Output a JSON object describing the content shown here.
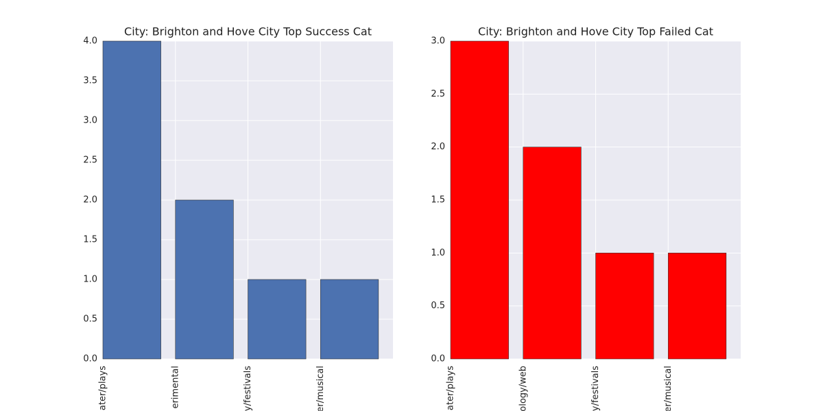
{
  "chart_data": [
    {
      "type": "bar",
      "title": "City: Brighton and Hove City Top Success Cat",
      "categories": [
        "ater/plays",
        "erimental",
        "y/festivals",
        "er/musical"
      ],
      "values": [
        4,
        2,
        1,
        1
      ],
      "color": "#4c72b0",
      "ylim": [
        0,
        4
      ],
      "yticks": [
        {
          "value": 0,
          "label": "0.0"
        },
        {
          "value": 0.5,
          "label": "0.5"
        },
        {
          "value": 1,
          "label": "1.0"
        },
        {
          "value": 1.5,
          "label": "1.5"
        },
        {
          "value": 2,
          "label": "2.0"
        },
        {
          "value": 2.5,
          "label": "2.5"
        },
        {
          "value": 3,
          "label": "3.0"
        },
        {
          "value": 3.5,
          "label": "3.5"
        },
        {
          "value": 4,
          "label": "4.0"
        }
      ],
      "grid": true
    },
    {
      "type": "bar",
      "title": "City: Brighton and Hove City Top Failed Cat",
      "categories": [
        "ater/plays",
        "ology/web",
        "y/festivals",
        "er/musical"
      ],
      "values": [
        3,
        2,
        1,
        1
      ],
      "color": "#ff0000",
      "ylim": [
        0,
        3
      ],
      "yticks": [
        {
          "value": 0,
          "label": "0.0"
        },
        {
          "value": 0.5,
          "label": "0.5"
        },
        {
          "value": 1,
          "label": "1.0"
        },
        {
          "value": 1.5,
          "label": "1.5"
        },
        {
          "value": 2,
          "label": "2.0"
        },
        {
          "value": 2.5,
          "label": "2.5"
        },
        {
          "value": 3,
          "label": "3.0"
        }
      ],
      "grid": true
    }
  ]
}
